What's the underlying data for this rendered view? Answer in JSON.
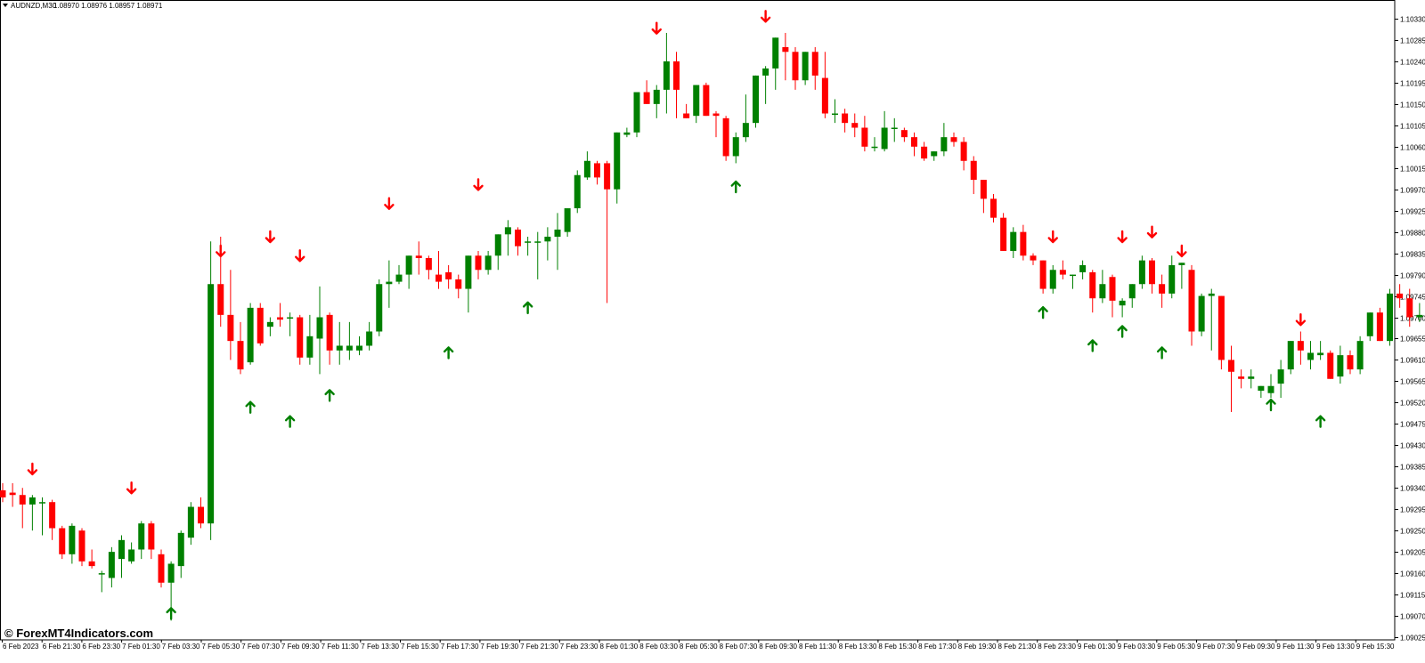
{
  "header": {
    "symbol": "AUDNZD,M30",
    "ohlc": "1.08970 1.08976 1.08957 1.08971"
  },
  "watermark": "© ForexMT4Indicators.com",
  "colors": {
    "bull": "#008000",
    "bear": "#ff0000",
    "grid": "#000000",
    "background": "#ffffff"
  },
  "chart_data": {
    "type": "candlestick",
    "ylim": [
      1.09025,
      1.104
    ],
    "y_ticks": [
      "1.10330",
      "1.10285",
      "1.10240",
      "1.10195",
      "1.10150",
      "1.10105",
      "1.10060",
      "1.10015",
      "1.09970",
      "1.09925",
      "1.09880",
      "1.09835",
      "1.09790",
      "1.09745",
      "1.09700",
      "1.09655",
      "1.09610",
      "1.09565",
      "1.09520",
      "1.09475",
      "1.09430",
      "1.09385",
      "1.09340",
      "1.09295",
      "1.09250",
      "1.09205",
      "1.09160",
      "1.09115",
      "1.09070",
      "1.09025"
    ],
    "x_ticks": [
      "6 Feb 2023",
      "6 Feb 21:30",
      "6 Feb 23:30",
      "7 Feb 01:30",
      "7 Feb 03:30",
      "7 Feb 05:30",
      "7 Feb 07:30",
      "7 Feb 09:30",
      "7 Feb 11:30",
      "7 Feb 13:30",
      "7 Feb 15:30",
      "7 Feb 17:30",
      "7 Feb 19:30",
      "7 Feb 21:30",
      "7 Feb 23:30",
      "8 Feb 01:30",
      "8 Feb 03:30",
      "8 Feb 05:30",
      "8 Feb 07:30",
      "8 Feb 09:30",
      "8 Feb 11:30",
      "8 Feb 13:30",
      "8 Feb 15:30",
      "8 Feb 17:30",
      "8 Feb 19:30",
      "8 Feb 21:30",
      "8 Feb 23:30",
      "9 Feb 01:30",
      "9 Feb 03:30",
      "9 Feb 05:30",
      "9 Feb 07:30",
      "9 Feb 09:30",
      "9 Feb 11:30",
      "9 Feb 13:30",
      "9 Feb 15:30"
    ],
    "candles": [
      [
        1.09335,
        1.0935,
        1.0931,
        1.0932
      ],
      [
        1.0933,
        1.0935,
        1.093,
        1.09325
      ],
      [
        1.09325,
        1.0934,
        1.09255,
        1.09305
      ],
      [
        1.09305,
        1.09325,
        1.0925,
        1.0932
      ],
      [
        1.0931,
        1.0932,
        1.0924,
        1.0931
      ],
      [
        1.0931,
        1.09315,
        1.0923,
        1.09255
      ],
      [
        1.09255,
        1.0926,
        1.0919,
        1.092
      ],
      [
        1.092,
        1.09265,
        1.0918,
        1.0926
      ],
      [
        1.0925,
        1.09255,
        1.09175,
        1.09185
      ],
      [
        1.09185,
        1.0921,
        1.0917,
        1.09175
      ],
      [
        1.0916,
        1.09165,
        1.0912,
        1.0916
      ],
      [
        1.0915,
        1.09215,
        1.0913,
        1.09205
      ],
      [
        1.0919,
        1.0924,
        1.0915,
        1.0923
      ],
      [
        1.09185,
        1.09225,
        1.0918,
        1.0921
      ],
      [
        1.0921,
        1.0927,
        1.0919,
        1.09265
      ],
      [
        1.09265,
        1.0927,
        1.0919,
        1.0921
      ],
      [
        1.092,
        1.0921,
        1.0913,
        1.0914
      ],
      [
        1.0914,
        1.09185,
        1.0906,
        1.0918
      ],
      [
        1.09175,
        1.0925,
        1.0915,
        1.09245
      ],
      [
        1.09235,
        1.0931,
        1.0922,
        1.093
      ],
      [
        1.093,
        1.0932,
        1.09255,
        1.09265
      ],
      [
        1.09265,
        1.0986,
        1.0923,
        1.0977
      ],
      [
        1.0977,
        1.0987,
        1.0968,
        1.09705
      ],
      [
        1.09705,
        1.098,
        1.0961,
        1.0965
      ],
      [
        1.0965,
        1.0969,
        1.0958,
        1.0959
      ],
      [
        1.09605,
        1.0973,
        1.096,
        1.0972
      ],
      [
        1.0972,
        1.0973,
        1.0964,
        1.09645
      ],
      [
        1.0968,
        1.097,
        1.0966,
        1.0969
      ],
      [
        1.097,
        1.0973,
        1.0968,
        1.09695
      ],
      [
        1.097,
        1.0971,
        1.0966,
        1.097
      ],
      [
        1.097,
        1.09705,
        1.096,
        1.09615
      ],
      [
        1.09615,
        1.09705,
        1.096,
        1.0966
      ],
      [
        1.09655,
        1.09765,
        1.0958,
        1.097
      ],
      [
        1.09705,
        1.0971,
        1.096,
        1.0963
      ],
      [
        1.0963,
        1.0969,
        1.096,
        1.0964
      ],
      [
        1.0963,
        1.0969,
        1.0961,
        1.0964
      ],
      [
        1.0963,
        1.0966,
        1.0962,
        1.0964
      ],
      [
        1.0964,
        1.0969,
        1.0963,
        1.0967
      ],
      [
        1.0967,
        1.0978,
        1.0966,
        1.0977
      ],
      [
        1.0977,
        1.0982,
        1.0972,
        1.09775
      ],
      [
        1.09775,
        1.0981,
        1.0977,
        1.0979
      ],
      [
        1.0979,
        1.0983,
        1.0976,
        1.0983
      ],
      [
        1.0983,
        1.0986,
        1.0979,
        1.09825
      ],
      [
        1.09825,
        1.0983,
        1.0978,
        1.098
      ],
      [
        1.0979,
        1.0984,
        1.0976,
        1.09775
      ],
      [
        1.09795,
        1.0981,
        1.0976,
        1.0978
      ],
      [
        1.0978,
        1.0979,
        1.0974,
        1.0976
      ],
      [
        1.0976,
        1.0983,
        1.0971,
        1.0983
      ],
      [
        1.0983,
        1.0984,
        1.0978,
        1.098
      ],
      [
        1.098,
        1.0984,
        1.0979,
        1.0983
      ],
      [
        1.0983,
        1.09875,
        1.098,
        1.09875
      ],
      [
        1.09875,
        1.09905,
        1.0983,
        1.0989
      ],
      [
        1.09885,
        1.0989,
        1.0983,
        1.0985
      ],
      [
        1.0986,
        1.0987,
        1.0983,
        1.0986
      ],
      [
        1.0986,
        1.0988,
        1.0978,
        1.0986
      ],
      [
        1.0986,
        1.0989,
        1.0982,
        1.0987
      ],
      [
        1.0987,
        1.0992,
        1.098,
        1.09885
      ],
      [
        1.0988,
        1.0993,
        1.0987,
        1.0993
      ],
      [
        1.0993,
        1.1001,
        1.0992,
        1.1
      ],
      [
        1.09995,
        1.1005,
        1.0999,
        1.1003
      ],
      [
        1.10025,
        1.1003,
        1.0998,
        1.09995
      ],
      [
        1.10025,
        1.1003,
        1.0973,
        1.0997
      ],
      [
        1.0997,
        1.1009,
        1.0994,
        1.1009
      ],
      [
        1.10085,
        1.101,
        1.1008,
        1.1009
      ],
      [
        1.1009,
        1.1017,
        1.1008,
        1.10175
      ],
      [
        1.10175,
        1.102,
        1.1015,
        1.1015
      ],
      [
        1.1015,
        1.1019,
        1.1012,
        1.1018
      ],
      [
        1.1018,
        1.103,
        1.1013,
        1.1024
      ],
      [
        1.1024,
        1.1026,
        1.1012,
        1.1018
      ],
      [
        1.1013,
        1.1015,
        1.1012,
        1.1012
      ],
      [
        1.10125,
        1.1019,
        1.1011,
        1.1019
      ],
      [
        1.1019,
        1.10195,
        1.10125,
        1.10125
      ],
      [
        1.1013,
        1.10135,
        1.1008,
        1.10125
      ],
      [
        1.1012,
        1.10125,
        1.1003,
        1.1004
      ],
      [
        1.1004,
        1.1009,
        1.10025,
        1.1008
      ],
      [
        1.1008,
        1.1017,
        1.1007,
        1.1011
      ],
      [
        1.1011,
        1.1021,
        1.101,
        1.1021
      ],
      [
        1.1021,
        1.1023,
        1.1015,
        1.10225
      ],
      [
        1.10225,
        1.1029,
        1.1018,
        1.1029
      ],
      [
        1.1027,
        1.103,
        1.102,
        1.1026
      ],
      [
        1.1026,
        1.1027,
        1.1018,
        1.102
      ],
      [
        1.102,
        1.1026,
        1.1019,
        1.1026
      ],
      [
        1.1026,
        1.1027,
        1.1018,
        1.1021
      ],
      [
        1.10205,
        1.1026,
        1.1012,
        1.1013
      ],
      [
        1.1013,
        1.1016,
        1.1011,
        1.1013
      ],
      [
        1.1013,
        1.1014,
        1.1009,
        1.1011
      ],
      [
        1.1011,
        1.1013,
        1.1008,
        1.101
      ],
      [
        1.101,
        1.10125,
        1.1005,
        1.1006
      ],
      [
        1.1006,
        1.1008,
        1.1005,
        1.1006
      ],
      [
        1.10055,
        1.10135,
        1.1005,
        1.101
      ],
      [
        1.101,
        1.1012,
        1.1007,
        1.101
      ],
      [
        1.10095,
        1.101,
        1.1007,
        1.1008
      ],
      [
        1.1008,
        1.1009,
        1.1004,
        1.1006
      ],
      [
        1.1006,
        1.1007,
        1.1003,
        1.10035
      ],
      [
        1.1004,
        1.1005,
        1.1003,
        1.1005
      ],
      [
        1.1005,
        1.1011,
        1.1004,
        1.1008
      ],
      [
        1.1008,
        1.1009,
        1.1006,
        1.1007
      ],
      [
        1.1007,
        1.1008,
        1.1001,
        1.1003
      ],
      [
        1.1003,
        1.1004,
        1.0996,
        1.0999
      ],
      [
        1.0999,
        1.0999,
        1.0992,
        1.0995
      ],
      [
        1.0995,
        1.0996,
        1.099,
        1.0991
      ],
      [
        1.0991,
        1.0992,
        1.0984,
        1.0984
      ],
      [
        1.0984,
        1.0989,
        1.09825,
        1.0988
      ],
      [
        1.0988,
        1.09895,
        1.0982,
        1.0983
      ],
      [
        1.0983,
        1.09835,
        1.0981,
        1.0982
      ],
      [
        1.0982,
        1.0982,
        1.0975,
        1.0976
      ],
      [
        1.0976,
        1.0981,
        1.0975,
        1.098
      ],
      [
        1.098,
        1.0982,
        1.0978,
        1.0979
      ],
      [
        1.0979,
        1.0979,
        1.0976,
        1.0979
      ],
      [
        1.09795,
        1.0982,
        1.0978,
        1.0981
      ],
      [
        1.09795,
        1.098,
        1.0971,
        1.0974
      ],
      [
        1.0974,
        1.098,
        1.0973,
        1.0977
      ],
      [
        1.09785,
        1.0979,
        1.097,
        1.09735
      ],
      [
        1.09725,
        1.0974,
        1.097,
        1.09735
      ],
      [
        1.0974,
        1.0977,
        1.0972,
        1.0977
      ],
      [
        1.0977,
        1.0983,
        1.0976,
        1.0982
      ],
      [
        1.0982,
        1.09825,
        1.0975,
        1.0977
      ],
      [
        1.0977,
        1.0979,
        1.0972,
        1.0975
      ],
      [
        1.0975,
        1.0983,
        1.0974,
        1.0981
      ],
      [
        1.0981,
        1.09815,
        1.0976,
        1.09815
      ],
      [
        1.098,
        1.0981,
        1.0964,
        1.0967
      ],
      [
        1.0967,
        1.0975,
        1.0966,
        1.09745
      ],
      [
        1.09745,
        1.0976,
        1.0963,
        1.0975
      ],
      [
        1.09745,
        1.09745,
        1.0959,
        1.0961
      ],
      [
        1.0961,
        1.0964,
        1.095,
        1.09585
      ],
      [
        1.09575,
        1.0959,
        1.0955,
        1.0957
      ],
      [
        1.0957,
        1.0959,
        1.0955,
        1.09575
      ],
      [
        1.09545,
        1.09555,
        1.0953,
        1.09555
      ],
      [
        1.0954,
        1.0958,
        1.0953,
        1.09555
      ],
      [
        1.0956,
        1.0961,
        1.0953,
        1.0959
      ],
      [
        1.0959,
        1.0965,
        1.0958,
        1.0965
      ],
      [
        1.0965,
        1.0967,
        1.096,
        1.0963
      ],
      [
        1.0961,
        1.0965,
        1.0959,
        1.09625
      ],
      [
        1.0962,
        1.0965,
        1.0961,
        1.09625
      ],
      [
        1.09625,
        1.0963,
        1.0957,
        1.0957
      ],
      [
        1.09575,
        1.0964,
        1.0956,
        1.0962
      ],
      [
        1.0962,
        1.0963,
        1.0958,
        1.0959
      ],
      [
        1.0959,
        1.0966,
        1.0958,
        1.0965
      ],
      [
        1.0966,
        1.0971,
        1.0965,
        1.0971
      ],
      [
        1.0971,
        1.0972,
        1.0965,
        1.0965
      ],
      [
        1.0965,
        1.0976,
        1.0964,
        1.0975
      ],
      [
        1.0975,
        1.0977,
        1.0972,
        1.0974
      ],
      [
        1.0974,
        1.0976,
        1.0968,
        1.097
      ],
      [
        1.097,
        1.0973,
        1.0969,
        1.09705
      ]
    ],
    "arrows_up": [
      [
        17,
        1.09075
      ],
      [
        25,
        1.0951
      ],
      [
        29,
        1.0948
      ],
      [
        33,
        1.09535
      ],
      [
        45,
        1.09625
      ],
      [
        53,
        1.0972
      ],
      [
        74,
        1.09975
      ],
      [
        105,
        1.0971
      ],
      [
        110,
        1.0964
      ],
      [
        113,
        1.0967
      ],
      [
        117,
        1.09625
      ],
      [
        128,
        1.09515
      ],
      [
        133,
        1.0948
      ]
    ],
    "arrows_down": [
      [
        3,
        1.0938
      ],
      [
        13,
        1.0934
      ],
      [
        22,
        1.0984
      ],
      [
        27,
        1.0987
      ],
      [
        30,
        1.0983
      ],
      [
        39,
        1.0994
      ],
      [
        48,
        1.0998
      ],
      [
        66,
        1.1031
      ],
      [
        77,
        1.10335
      ],
      [
        106,
        1.0987
      ],
      [
        113,
        1.0987
      ],
      [
        116,
        1.0988
      ],
      [
        119,
        1.0984
      ],
      [
        131,
        1.09695
      ]
    ]
  }
}
